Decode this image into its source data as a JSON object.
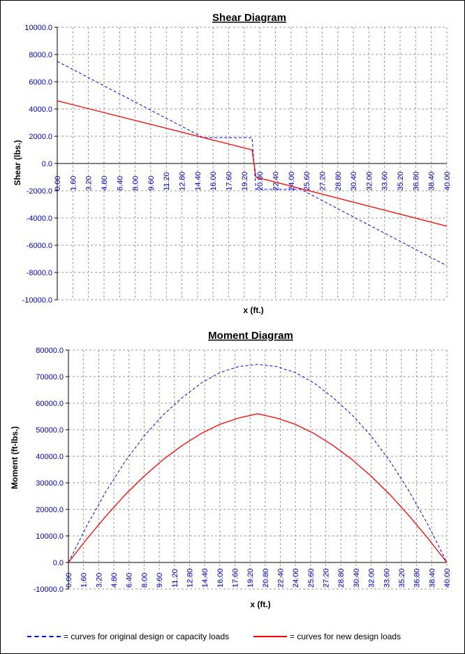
{
  "chart_data": [
    {
      "type": "line",
      "title": "Shear Diagram",
      "xlabel": "x (ft.)",
      "ylabel": "Shear (lbs.)",
      "ylim": [
        -10000,
        10000
      ],
      "yticks": [
        "10000.0",
        "8000.0",
        "6000.0",
        "4000.0",
        "2000.0",
        "0.0",
        "-2000.0",
        "-4000.0",
        "-6000.0",
        "-8000.0",
        "-10000.0"
      ],
      "xticks": [
        "0.00",
        "1.60",
        "3.20",
        "4.80",
        "6.40",
        "8.00",
        "9.60",
        "11.20",
        "12.80",
        "14.40",
        "16.00",
        "17.60",
        "19.20",
        "20.80",
        "22.40",
        "24.00",
        "25.60",
        "27.20",
        "28.80",
        "30.40",
        "32.00",
        "33.60",
        "35.20",
        "36.80",
        "38.40",
        "40.00"
      ],
      "xlim": [
        0,
        40
      ],
      "grid": true,
      "series": [
        {
          "style": "dashed",
          "color": "#0000ff",
          "x": [
            0,
            15,
            20,
            20.4,
            25,
            40
          ],
          "y": [
            7500,
            1900,
            1900,
            -1900,
            -1900,
            -7500
          ]
        },
        {
          "style": "solid",
          "color": "#ff0000",
          "x": [
            0,
            20,
            20.4,
            40
          ],
          "y": [
            4600,
            1000,
            -1000,
            -4600
          ]
        }
      ]
    },
    {
      "type": "line",
      "title": "Moment Diagram",
      "xlabel": "x (ft.)",
      "ylabel": "Moment (ft-lbs.)",
      "ylim": [
        -10000,
        80000
      ],
      "yticks": [
        "80000.0",
        "70000.0",
        "60000.0",
        "50000.0",
        "40000.0",
        "30000.0",
        "20000.0",
        "10000.0",
        "0.0",
        "-10000.0"
      ],
      "xticks": [
        "0.00",
        "1.60",
        "3.20",
        "4.80",
        "6.40",
        "8.00",
        "9.60",
        "11.20",
        "12.80",
        "14.40",
        "16.00",
        "17.60",
        "19.20",
        "20.80",
        "22.40",
        "24.00",
        "25.60",
        "27.20",
        "28.80",
        "30.40",
        "32.00",
        "33.60",
        "35.20",
        "36.80",
        "38.40",
        "40.00"
      ],
      "xlim": [
        0,
        40
      ],
      "grid": true,
      "series": [
        {
          "style": "dashed",
          "color": "#0000ff",
          "x": [
            0,
            2,
            4,
            6,
            8,
            10,
            12,
            14,
            16,
            18,
            20,
            22,
            24,
            26,
            28,
            30,
            32,
            34,
            36,
            38,
            40
          ],
          "y": [
            0,
            14200,
            26900,
            38100,
            47600,
            55500,
            62000,
            67500,
            71500,
            73800,
            74600,
            73800,
            71500,
            67500,
            62000,
            55500,
            47600,
            38100,
            26900,
            14200,
            0
          ]
        },
        {
          "style": "solid",
          "color": "#ff0000",
          "x": [
            0,
            2,
            4,
            6,
            8,
            10,
            12,
            14,
            16,
            18,
            20,
            22,
            24,
            26,
            28,
            30,
            32,
            34,
            36,
            38,
            40
          ],
          "y": [
            0,
            9100,
            17600,
            25500,
            32500,
            38700,
            44000,
            48500,
            52000,
            54400,
            56000,
            54400,
            52000,
            48500,
            44000,
            38700,
            32500,
            25500,
            17600,
            9100,
            0
          ]
        }
      ]
    }
  ],
  "legend": {
    "dashed_label": "= curves for original design or capacity loads",
    "solid_label": "= curves for new design loads"
  }
}
